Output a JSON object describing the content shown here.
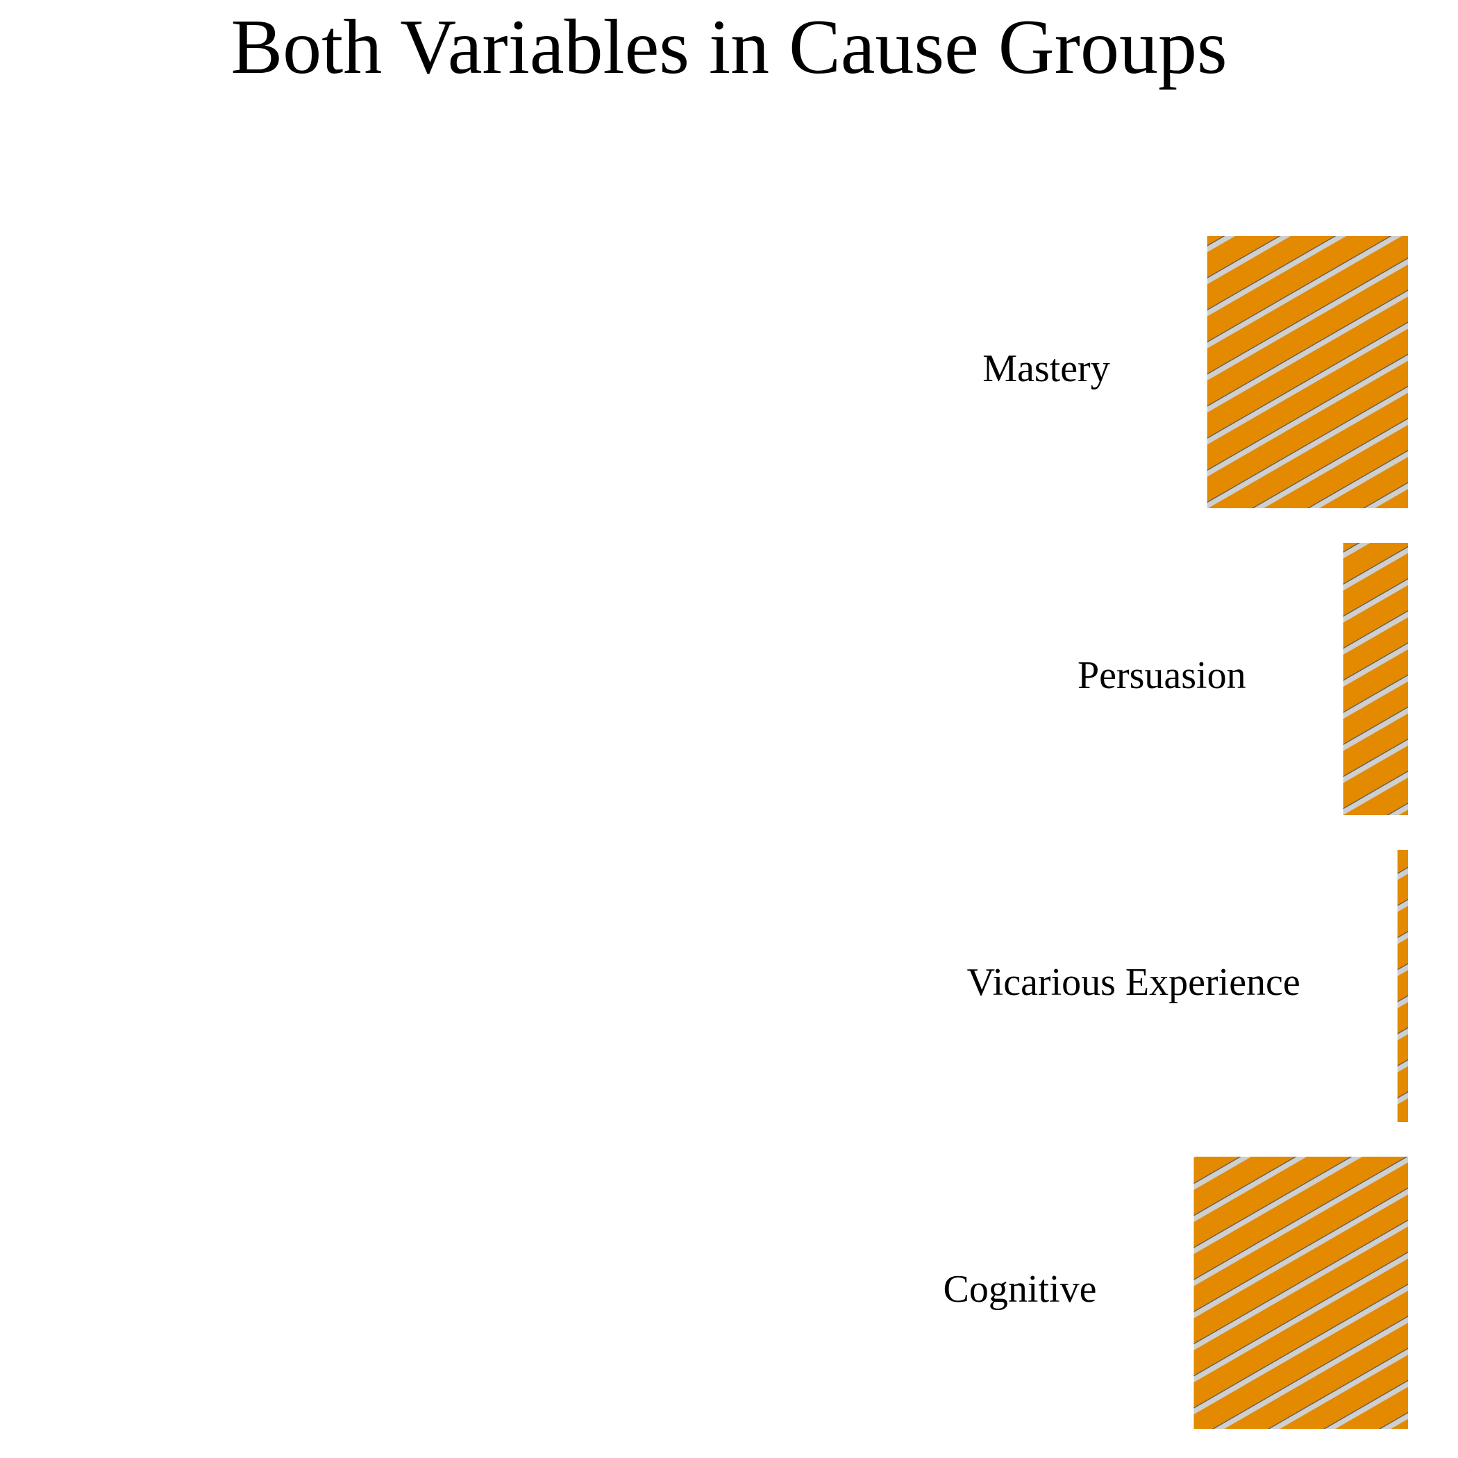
{
  "chart_data": {
    "type": "bar",
    "orientation": "horizontal",
    "title": "Both Variables in Cause Groups",
    "xlabel": "",
    "ylabel": "",
    "categories": [
      "Mastery",
      "Persuasion",
      "Vicarious Experience",
      "Cognitive"
    ],
    "values": [
      0.285,
      0.092,
      0.015,
      0.304
    ],
    "xlim": [
      0,
      1
    ],
    "grid": false,
    "legend": "none",
    "bar_color": "#E38A00",
    "hatch_color": "#CFCFCF",
    "bar_fill": "diagonal-hatch"
  }
}
